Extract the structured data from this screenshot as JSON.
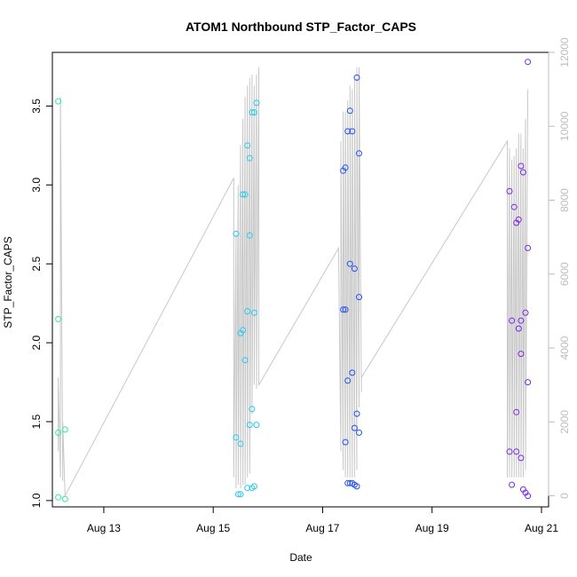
{
  "chart_data": {
    "type": "scatter",
    "title": "ATOM1 Northbound STP_Factor_CAPS",
    "xlabel": "Date",
    "ylabel": "STP_Factor_CAPS",
    "x_ticks": [
      "Aug 13",
      "Aug 15",
      "Aug 17",
      "Aug 19",
      "Aug 21"
    ],
    "y_ticks": [
      "1.0",
      "1.5",
      "2.0",
      "2.5",
      "3.0",
      "3.5"
    ],
    "y2_ticks": [
      "0",
      "2000",
      "4000",
      "6000",
      "8000",
      "10000",
      "12000"
    ],
    "ylim": [
      0.96,
      3.84
    ],
    "y2lim": [
      -300,
      12000
    ],
    "xlim_days": [
      12.06,
      21.13
    ],
    "grid": false,
    "point_series": [
      {
        "name": "",
        "color": "#33e6b0",
        "points": [
          {
            "x": "Aug 12 04:00",
            "y": 3.53
          },
          {
            "x": "Aug 12 04:00",
            "y": 2.15
          },
          {
            "x": "Aug 12 04:00",
            "y": 1.43
          },
          {
            "x": "Aug 12 04:00",
            "y": 1.02
          },
          {
            "x": "Aug 12 07:00",
            "y": 1.45
          },
          {
            "x": "Aug 12 07:00",
            "y": 1.01
          }
        ]
      },
      {
        "name": "",
        "color": "#2bc7f0",
        "points": [
          {
            "x": "Aug 15 10:00",
            "y": 2.69
          },
          {
            "x": "Aug 15 10:00",
            "y": 1.4
          },
          {
            "x": "Aug 15 11:00",
            "y": 1.04
          },
          {
            "x": "Aug 15 12:00",
            "y": 1.04
          },
          {
            "x": "Aug 15 12:00",
            "y": 1.36
          },
          {
            "x": "Aug 15 12:00",
            "y": 2.06
          },
          {
            "x": "Aug 15 13:00",
            "y": 2.08
          },
          {
            "x": "Aug 15 13:00",
            "y": 2.94
          },
          {
            "x": "Aug 15 14:00",
            "y": 2.94
          },
          {
            "x": "Aug 15 14:00",
            "y": 1.89
          },
          {
            "x": "Aug 15 15:00",
            "y": 2.2
          },
          {
            "x": "Aug 15 15:00",
            "y": 1.08
          },
          {
            "x": "Aug 15 15:00",
            "y": 3.25
          },
          {
            "x": "Aug 15 16:00",
            "y": 3.17
          },
          {
            "x": "Aug 15 16:00",
            "y": 1.48
          },
          {
            "x": "Aug 15 16:00",
            "y": 2.68
          },
          {
            "x": "Aug 15 17:00",
            "y": 3.46
          },
          {
            "x": "Aug 15 17:00",
            "y": 1.58
          },
          {
            "x": "Aug 15 17:00",
            "y": 1.08
          },
          {
            "x": "Aug 15 18:00",
            "y": 1.09
          },
          {
            "x": "Aug 15 18:00",
            "y": 3.46
          },
          {
            "x": "Aug 15 18:00",
            "y": 2.19
          },
          {
            "x": "Aug 15 19:00",
            "y": 3.52
          },
          {
            "x": "Aug 15 19:00",
            "y": 1.48
          }
        ]
      },
      {
        "name": "",
        "color": "#1f50f5",
        "points": [
          {
            "x": "Aug 17 09:00",
            "y": 3.09
          },
          {
            "x": "Aug 17 09:00",
            "y": 2.21
          },
          {
            "x": "Aug 17 10:00",
            "y": 1.37
          },
          {
            "x": "Aug 17 10:00",
            "y": 2.21
          },
          {
            "x": "Aug 17 10:00",
            "y": 3.11
          },
          {
            "x": "Aug 17 11:00",
            "y": 3.34
          },
          {
            "x": "Aug 17 11:00",
            "y": 1.76
          },
          {
            "x": "Aug 17 11:00",
            "y": 1.11
          },
          {
            "x": "Aug 17 12:00",
            "y": 1.11
          },
          {
            "x": "Aug 17 12:00",
            "y": 2.5
          },
          {
            "x": "Aug 17 12:00",
            "y": 3.47
          },
          {
            "x": "Aug 17 13:00",
            "y": 1.81
          },
          {
            "x": "Aug 17 13:00",
            "y": 3.34
          },
          {
            "x": "Aug 17 13:00",
            "y": 1.11
          },
          {
            "x": "Aug 17 14:00",
            "y": 1.46
          },
          {
            "x": "Aug 17 14:00",
            "y": 2.47
          },
          {
            "x": "Aug 17 14:00",
            "y": 1.1
          },
          {
            "x": "Aug 17 15:00",
            "y": 3.68
          },
          {
            "x": "Aug 17 15:00",
            "y": 1.55
          },
          {
            "x": "Aug 17 15:00",
            "y": 1.09
          },
          {
            "x": "Aug 17 16:00",
            "y": 2.29
          },
          {
            "x": "Aug 17 16:00",
            "y": 3.2
          },
          {
            "x": "Aug 17 16:00",
            "y": 1.43
          }
        ]
      },
      {
        "name": "",
        "color": "#7a28e6",
        "points": [
          {
            "x": "Aug 20 10:00",
            "y": 2.96
          },
          {
            "x": "Aug 20 10:00",
            "y": 1.31
          },
          {
            "x": "Aug 20 11:00",
            "y": 1.1
          },
          {
            "x": "Aug 20 11:00",
            "y": 2.14
          },
          {
            "x": "Aug 20 12:00",
            "y": 2.86
          },
          {
            "x": "Aug 20 13:00",
            "y": 2.76
          },
          {
            "x": "Aug 20 13:00",
            "y": 1.56
          },
          {
            "x": "Aug 20 13:00",
            "y": 1.31
          },
          {
            "x": "Aug 20 14:00",
            "y": 2.78
          },
          {
            "x": "Aug 20 14:00",
            "y": 2.09
          },
          {
            "x": "Aug 20 15:00",
            "y": 3.12
          },
          {
            "x": "Aug 20 15:00",
            "y": 2.14
          },
          {
            "x": "Aug 20 15:00",
            "y": 1.93
          },
          {
            "x": "Aug 20 15:00",
            "y": 1.27
          },
          {
            "x": "Aug 20 16:00",
            "y": 1.07
          },
          {
            "x": "Aug 20 16:00",
            "y": 3.08
          },
          {
            "x": "Aug 20 17:00",
            "y": 1.05
          },
          {
            "x": "Aug 20 17:00",
            "y": 2.19
          },
          {
            "x": "Aug 20 18:00",
            "y": 1.75
          },
          {
            "x": "Aug 20 18:00",
            "y": 2.6
          },
          {
            "x": "Aug 20 18:00",
            "y": 3.78
          },
          {
            "x": "Aug 20 18:00",
            "y": 1.03
          }
        ]
      }
    ],
    "line_series": {
      "name": "",
      "color": "#c8c8c8",
      "axis": "right",
      "points": [
        {
          "x": "Aug 12 04:00",
          "y": 1200
        },
        {
          "x": "Aug 12 04:00",
          "y": 3200
        },
        {
          "x": "Aug 12 05:00",
          "y": 500
        },
        {
          "x": "Aug 12 05:00",
          "y": 10800
        },
        {
          "x": "Aug 12 06:00",
          "y": 400
        },
        {
          "x": "Aug 12 06:00",
          "y": 2000
        },
        {
          "x": "Aug 12 07:00",
          "y": 0
        },
        {
          "x": "Aug 15 09:00",
          "y": 8600
        },
        {
          "x": "Aug 15 09:00",
          "y": 500
        },
        {
          "x": "Aug 15 10:00",
          "y": 7100
        },
        {
          "x": "Aug 15 10:00",
          "y": 200
        },
        {
          "x": "Aug 15 11:00",
          "y": 8400
        },
        {
          "x": "Aug 15 11:00",
          "y": 300
        },
        {
          "x": "Aug 15 12:00",
          "y": 9500
        },
        {
          "x": "Aug 15 12:00",
          "y": 200
        },
        {
          "x": "Aug 15 13:00",
          "y": 10200
        },
        {
          "x": "Aug 15 13:00",
          "y": 300
        },
        {
          "x": "Aug 15 14:00",
          "y": 10800
        },
        {
          "x": "Aug 15 14:00",
          "y": 300
        },
        {
          "x": "Aug 15 15:00",
          "y": 11100
        },
        {
          "x": "Aug 15 15:00",
          "y": 500
        },
        {
          "x": "Aug 15 16:00",
          "y": 11300
        },
        {
          "x": "Aug 15 16:00",
          "y": 600
        },
        {
          "x": "Aug 15 17:00",
          "y": 11400
        },
        {
          "x": "Aug 15 17:00",
          "y": 2200
        },
        {
          "x": "Aug 15 18:00",
          "y": 11100
        },
        {
          "x": "Aug 15 18:00",
          "y": 3000
        },
        {
          "x": "Aug 15 19:00",
          "y": 11400
        },
        {
          "x": "Aug 15 19:00",
          "y": 2900
        },
        {
          "x": "Aug 15 20:00",
          "y": 11600
        },
        {
          "x": "Aug 15 20:00",
          "y": 3000
        },
        {
          "x": "Aug 15 20:00",
          "y": 11600
        },
        {
          "x": "Aug 15 20:00",
          "y": 3000
        },
        {
          "x": "Aug 17 07:00",
          "y": 6700
        },
        {
          "x": "Aug 17 08:00",
          "y": 1200
        },
        {
          "x": "Aug 17 08:00",
          "y": 9600
        },
        {
          "x": "Aug 17 09:00",
          "y": 700
        },
        {
          "x": "Aug 17 09:00",
          "y": 10400
        },
        {
          "x": "Aug 17 10:00",
          "y": 500
        },
        {
          "x": "Aug 17 10:00",
          "y": 10400
        },
        {
          "x": "Aug 17 11:00",
          "y": 500
        },
        {
          "x": "Aug 17 11:00",
          "y": 10700
        },
        {
          "x": "Aug 17 12:00",
          "y": 500
        },
        {
          "x": "Aug 17 12:00",
          "y": 11100
        },
        {
          "x": "Aug 17 13:00",
          "y": 500
        },
        {
          "x": "Aug 17 13:00",
          "y": 11000
        },
        {
          "x": "Aug 17 14:00",
          "y": 500
        },
        {
          "x": "Aug 17 14:00",
          "y": 11300
        },
        {
          "x": "Aug 17 15:00",
          "y": 700
        },
        {
          "x": "Aug 17 15:00",
          "y": 11600
        },
        {
          "x": "Aug 17 16:00",
          "y": 2400
        },
        {
          "x": "Aug 17 16:00",
          "y": 11600
        },
        {
          "x": "Aug 17 17:00",
          "y": 2800
        },
        {
          "x": "Aug 17 17:00",
          "y": 3200
        },
        {
          "x": "Aug 20 09:00",
          "y": 9600
        },
        {
          "x": "Aug 20 09:00",
          "y": 500
        },
        {
          "x": "Aug 20 10:00",
          "y": 9400
        },
        {
          "x": "Aug 20 10:00",
          "y": 500
        },
        {
          "x": "Aug 20 11:00",
          "y": 9100
        },
        {
          "x": "Aug 20 11:00",
          "y": 500
        },
        {
          "x": "Aug 20 12:00",
          "y": 9200
        },
        {
          "x": "Aug 20 12:00",
          "y": 500
        },
        {
          "x": "Aug 20 13:00",
          "y": 9400
        },
        {
          "x": "Aug 20 13:00",
          "y": 500
        },
        {
          "x": "Aug 20 14:00",
          "y": 9800
        },
        {
          "x": "Aug 20 14:00",
          "y": 500
        },
        {
          "x": "Aug 20 15:00",
          "y": 9800
        },
        {
          "x": "Aug 20 15:00",
          "y": 500
        },
        {
          "x": "Aug 20 16:00",
          "y": 9400
        },
        {
          "x": "Aug 20 16:00",
          "y": 500
        },
        {
          "x": "Aug 20 17:00",
          "y": 10200
        },
        {
          "x": "Aug 20 17:00",
          "y": 700
        },
        {
          "x": "Aug 20 18:00",
          "y": 11000
        }
      ]
    }
  }
}
